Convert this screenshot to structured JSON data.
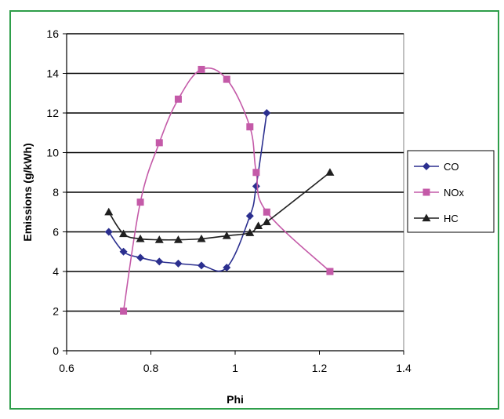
{
  "chart_data": {
    "type": "line",
    "title": "",
    "xlabel": "Phi",
    "ylabel": "Emissions (g/kWh)",
    "xlim": [
      0.6,
      1.4
    ],
    "ylim": [
      0,
      16
    ],
    "xticks": [
      "0.6",
      "0.8",
      "1",
      "1.2",
      "1.4"
    ],
    "yticks": [
      "0",
      "2",
      "4",
      "6",
      "8",
      "10",
      "12",
      "14",
      "16"
    ],
    "grid": "horizontal",
    "legend_position": "right",
    "series": [
      {
        "name": "CO",
        "color": "#2b2f8f",
        "marker": "diamond",
        "points": [
          [
            0.7,
            6.0
          ],
          [
            0.735,
            5.0
          ],
          [
            0.775,
            4.7
          ],
          [
            0.82,
            4.5
          ],
          [
            0.865,
            4.4
          ],
          [
            0.92,
            4.3
          ],
          [
            0.98,
            4.2
          ],
          [
            1.035,
            6.8
          ],
          [
            1.05,
            8.3
          ],
          [
            1.075,
            12.0
          ]
        ]
      },
      {
        "name": "NOx",
        "color": "#c45aa8",
        "marker": "square",
        "points": [
          [
            0.735,
            2.0
          ],
          [
            0.775,
            7.5
          ],
          [
            0.82,
            10.5
          ],
          [
            0.865,
            12.7
          ],
          [
            0.92,
            14.2
          ],
          [
            0.98,
            13.7
          ],
          [
            1.035,
            11.3
          ],
          [
            1.05,
            9.0
          ],
          [
            1.075,
            7.0
          ],
          [
            1.225,
            4.0
          ]
        ]
      },
      {
        "name": "HC",
        "color": "#1f1f1f",
        "marker": "triangle",
        "points": [
          [
            0.7,
            7.0
          ],
          [
            0.735,
            5.9
          ],
          [
            0.775,
            5.65
          ],
          [
            0.82,
            5.6
          ],
          [
            0.865,
            5.6
          ],
          [
            0.92,
            5.65
          ],
          [
            0.98,
            5.8
          ],
          [
            1.035,
            5.95
          ],
          [
            1.055,
            6.3
          ],
          [
            1.075,
            6.5
          ],
          [
            1.225,
            9.0
          ]
        ]
      }
    ]
  }
}
